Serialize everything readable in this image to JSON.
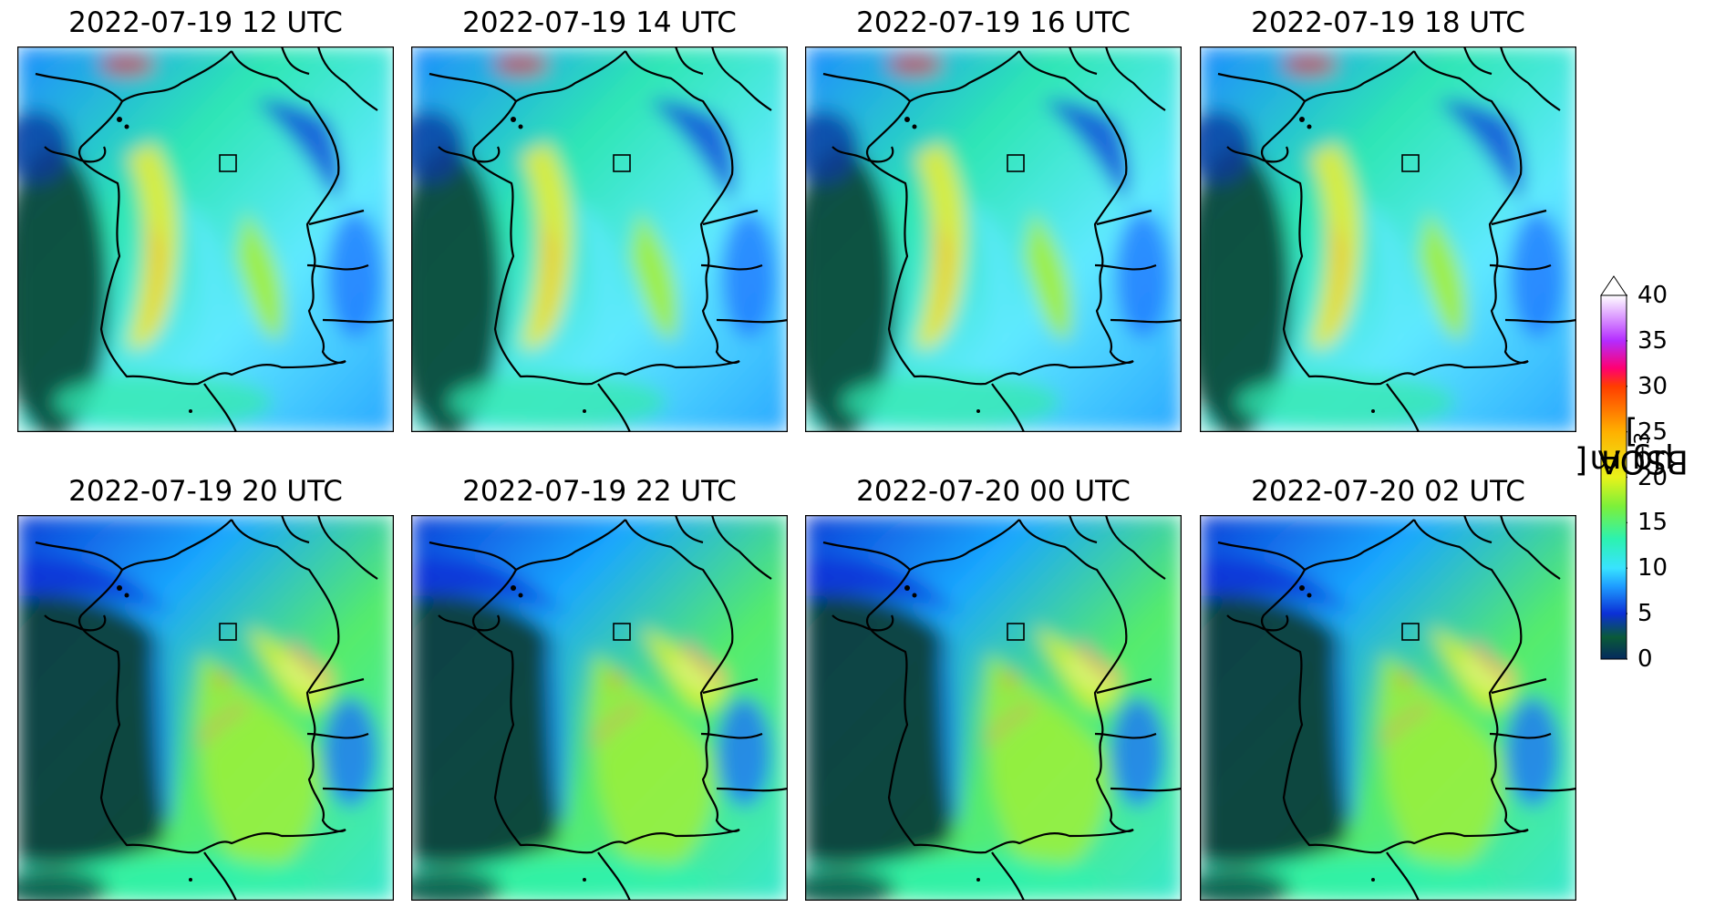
{
  "panels": [
    {
      "title": "2022-07-19 12 UTC",
      "theme": "day",
      "hour": 12
    },
    {
      "title": "2022-07-19 14 UTC",
      "theme": "day",
      "hour": 14
    },
    {
      "title": "2022-07-19 16 UTC",
      "theme": "day",
      "hour": 16
    },
    {
      "title": "2022-07-19 18 UTC",
      "theme": "day",
      "hour": 18
    },
    {
      "title": "2022-07-19 20 UTC",
      "theme": "night",
      "hour": 20
    },
    {
      "title": "2022-07-19 22 UTC",
      "theme": "night",
      "hour": 22
    },
    {
      "title": "2022-07-20 00 UTC",
      "theme": "night",
      "hour": 0
    },
    {
      "title": "2022-07-20 02 UTC",
      "theme": "night",
      "hour": 2
    }
  ],
  "colorbar": {
    "label_prefix": "BSOA [",
    "label_unit": "μg m",
    "label_exp": "−3",
    "label_suffix": "]",
    "ticks": [
      "0",
      "5",
      "10",
      "15",
      "20",
      "25",
      "30",
      "35",
      "40"
    ],
    "min": 0,
    "max": 40,
    "extend": "max",
    "colors": [
      "#052a5e",
      "#0a5a38",
      "#0b2fd6",
      "#1e9cff",
      "#38e3ff",
      "#2cf2b0",
      "#7cf03a",
      "#e8f21a",
      "#ffb000",
      "#ff3d00",
      "#ff0072",
      "#b42cff",
      "#ffffff"
    ]
  }
}
